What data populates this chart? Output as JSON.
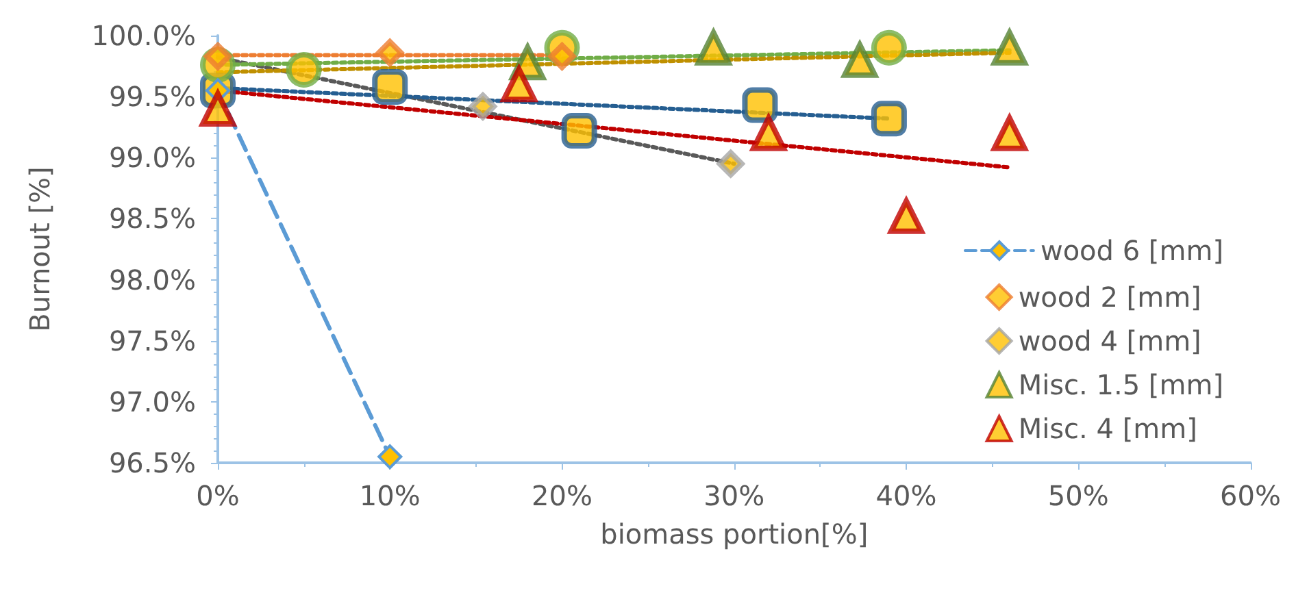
{
  "chart_data": {
    "type": "scatter",
    "xlabel": "biomass portion[%]",
    "ylabel": "Burnout [%]",
    "xlim": [
      0,
      60
    ],
    "xticks": [
      {
        "value": 0,
        "label": "0%"
      },
      {
        "value": 10,
        "label": "10%"
      },
      {
        "value": 20,
        "label": "20%"
      },
      {
        "value": 30,
        "label": "30%"
      },
      {
        "value": 40,
        "label": "40%"
      },
      {
        "value": 50,
        "label": "50%"
      },
      {
        "value": 60,
        "label": "60%"
      }
    ],
    "ylim": [
      96.5,
      100
    ],
    "yticks": [
      {
        "value": 96.5,
        "label": "96.5%"
      },
      {
        "value": 97,
        "label": "97.0%"
      },
      {
        "value": 97.5,
        "label": "97.5%"
      },
      {
        "value": 98,
        "label": "98.0%"
      },
      {
        "value": 98.5,
        "label": "98.5%"
      },
      {
        "value": 99,
        "label": "99.0%"
      },
      {
        "value": 99.5,
        "label": "99.5%"
      },
      {
        "value": 100,
        "label": "100.0%"
      }
    ],
    "grid": false,
    "legend": "right",
    "series": [
      {
        "type": "line",
        "color": "#ed7d31",
        "line_style": "dotted",
        "marker": "none",
        "x": [
          0,
          20
        ],
        "values": [
          99.84,
          99.84
        ]
      },
      {
        "type": "line",
        "color": "#595959",
        "line_style": "dotted",
        "marker": "none",
        "x": [
          0,
          30
        ],
        "values": [
          99.82,
          98.95
        ]
      },
      {
        "type": "line",
        "color": "#255e91",
        "line_style": "dotted",
        "marker": "none",
        "x": [
          0,
          39
        ],
        "values": [
          99.57,
          99.32
        ]
      },
      {
        "type": "line",
        "color": "#c00000",
        "line_style": "dotted",
        "marker": "none",
        "x": [
          0,
          46
        ],
        "values": [
          99.55,
          98.92
        ]
      },
      {
        "type": "line",
        "color": "#70ad47",
        "line_style": "dotted",
        "marker": "none",
        "x": [
          0,
          46
        ],
        "values": [
          99.76,
          99.88
        ]
      },
      {
        "type": "line",
        "color": "#bf9000",
        "line_style": "dotted",
        "marker": "none",
        "x": [
          0,
          46
        ],
        "values": [
          99.7,
          99.86
        ]
      },
      {
        "color": "#255e91",
        "marker": "square",
        "x": [
          0,
          10,
          21,
          31.5,
          39
        ],
        "values": [
          99.55,
          99.58,
          99.22,
          99.43,
          99.32
        ]
      },
      {
        "color": "#70ad47",
        "marker": "circle",
        "x": [
          0,
          5,
          20,
          39
        ],
        "values": [
          99.76,
          99.72,
          99.9,
          99.9
        ]
      },
      {
        "type": "line",
        "name": "wood 6 [mm]",
        "color": "#5b9bd5",
        "line_style": "dashed",
        "marker": "diamond",
        "x": [
          0,
          10
        ],
        "values": [
          99.55,
          96.55
        ]
      },
      {
        "name": "wood 2 [mm]",
        "color": "#ed7d31",
        "marker": "diamond",
        "x": [
          0,
          10,
          20
        ],
        "values": [
          99.83,
          99.86,
          99.83
        ]
      },
      {
        "name": "wood 4 [mm]",
        "color": "#a5a5a5",
        "marker": "diamond",
        "x": [
          15.4,
          29.8
        ],
        "values": [
          99.42,
          98.95
        ]
      },
      {
        "name": "Misc. 1.5 [mm]",
        "color": "#548235",
        "marker": "triangle",
        "x": [
          18,
          28.8,
          37.3,
          46
        ],
        "values": [
          99.78,
          99.9,
          99.8,
          99.9
        ]
      },
      {
        "name": "Misc. 4 [mm]",
        "color": "#c00000",
        "marker": "triangle",
        "x": [
          0,
          17.5,
          32,
          40,
          46
        ],
        "values": [
          99.4,
          99.6,
          99.2,
          98.52,
          99.2
        ]
      }
    ]
  }
}
